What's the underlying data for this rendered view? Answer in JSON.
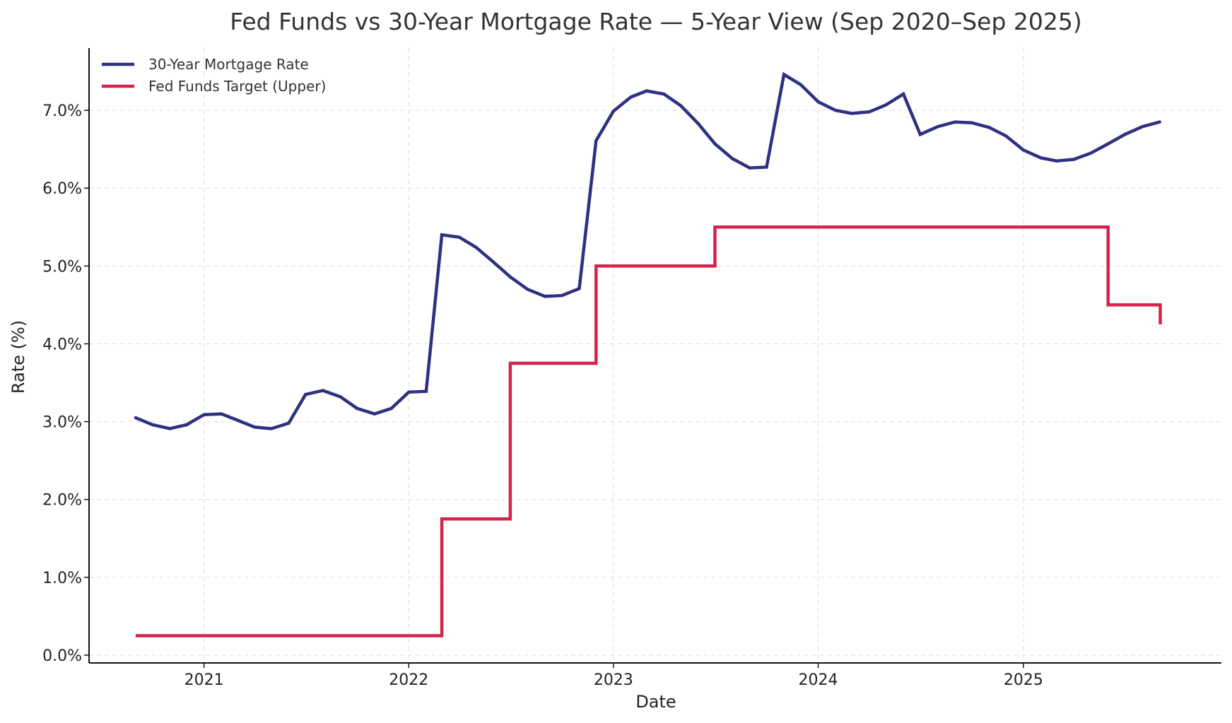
{
  "chart_data": {
    "type": "line",
    "title": "Fed Funds vs 30-Year Mortgage Rate — 5-Year View (Sep 2020–Sep 2025)",
    "xlabel": "Date",
    "ylabel": "Rate (%)",
    "x_axis": {
      "type": "date",
      "range": [
        "2020-06-10",
        "2025-12-20"
      ],
      "ticks": [
        {
          "date": "2021-01-01",
          "label": "2021"
        },
        {
          "date": "2022-01-01",
          "label": "2022"
        },
        {
          "date": "2023-01-01",
          "label": "2023"
        },
        {
          "date": "2024-01-01",
          "label": "2024"
        },
        {
          "date": "2025-01-01",
          "label": "2025"
        }
      ]
    },
    "y_axis": {
      "range": [
        -0.1,
        7.8
      ],
      "ticks": [
        {
          "value": 0,
          "label": "0.0%"
        },
        {
          "value": 1,
          "label": "1.0%"
        },
        {
          "value": 2,
          "label": "2.0%"
        },
        {
          "value": 3,
          "label": "3.0%"
        },
        {
          "value": 4,
          "label": "4.0%"
        },
        {
          "value": 5,
          "label": "5.0%"
        },
        {
          "value": 6,
          "label": "6.0%"
        },
        {
          "value": 7,
          "label": "7.0%"
        }
      ]
    },
    "grid": true,
    "legend": {
      "position": "top-left"
    },
    "series": [
      {
        "name": "30-Year Mortgage Rate",
        "color": "#2e3180",
        "style": "line",
        "x": [
          "2020-09-01",
          "2020-10-01",
          "2020-11-01",
          "2020-12-01",
          "2021-01-01",
          "2021-02-01",
          "2021-03-01",
          "2021-04-01",
          "2021-05-01",
          "2021-06-01",
          "2021-07-01",
          "2021-08-01",
          "2021-09-01",
          "2021-10-01",
          "2021-11-01",
          "2021-12-01",
          "2022-01-01",
          "2022-02-01",
          "2022-03-01",
          "2022-04-01",
          "2022-05-01",
          "2022-06-01",
          "2022-07-01",
          "2022-08-01",
          "2022-09-01",
          "2022-10-01",
          "2022-11-01",
          "2022-12-01",
          "2023-01-01",
          "2023-02-01",
          "2023-03-01",
          "2023-04-01",
          "2023-05-01",
          "2023-06-01",
          "2023-07-01",
          "2023-08-01",
          "2023-09-01",
          "2023-10-01",
          "2023-11-01",
          "2023-12-01",
          "2024-01-01",
          "2024-02-01",
          "2024-03-01",
          "2024-04-01",
          "2024-05-01",
          "2024-06-01",
          "2024-07-01",
          "2024-08-01",
          "2024-09-01",
          "2024-10-01",
          "2024-11-01",
          "2024-12-01",
          "2025-01-01",
          "2025-02-01",
          "2025-03-01",
          "2025-04-01",
          "2025-05-01",
          "2025-06-01",
          "2025-07-01",
          "2025-08-01",
          "2025-09-01"
        ],
        "values": [
          3.05,
          2.96,
          2.91,
          2.96,
          3.09,
          3.1,
          3.02,
          2.93,
          2.91,
          2.98,
          3.35,
          3.4,
          3.32,
          3.17,
          3.1,
          3.17,
          3.38,
          3.39,
          5.4,
          5.37,
          5.24,
          5.05,
          4.86,
          4.7,
          4.61,
          4.62,
          4.71,
          6.61,
          6.99,
          7.17,
          7.25,
          7.21,
          7.06,
          6.83,
          6.57,
          6.38,
          6.26,
          6.27,
          7.46,
          7.33,
          7.11,
          7.0,
          6.96,
          6.98,
          7.07,
          7.21,
          6.69,
          6.79,
          6.85,
          6.84,
          6.78,
          6.67,
          6.49,
          6.39,
          6.35,
          6.37,
          6.45,
          6.57,
          6.69,
          6.79,
          6.85
        ]
      },
      {
        "name": "Fed Funds Target (Upper)",
        "color": "#d5234a",
        "style": "step-post",
        "x": [
          "2020-09-01",
          "2022-03-01",
          "2022-07-01",
          "2022-12-01",
          "2023-07-01",
          "2025-06-01",
          "2025-09-01",
          "2025-09-02"
        ],
        "values": [
          0.25,
          1.75,
          3.75,
          5.0,
          5.5,
          4.5,
          4.5,
          4.25
        ]
      }
    ]
  }
}
